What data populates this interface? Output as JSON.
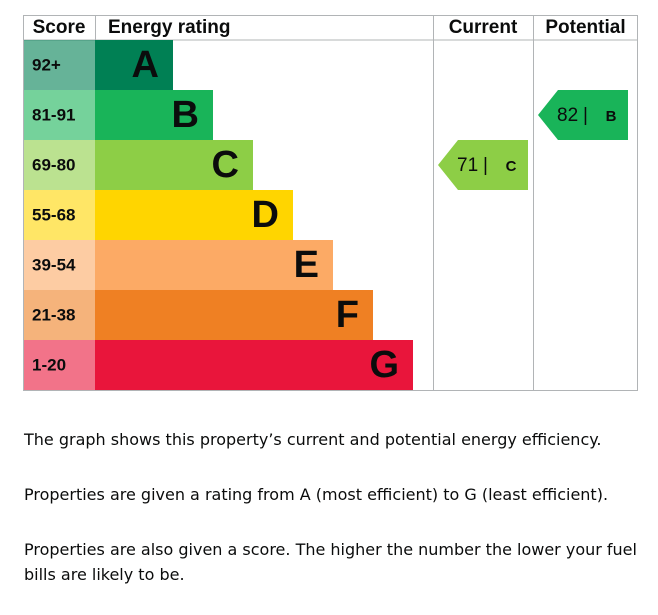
{
  "chart_data": {
    "type": "epc",
    "headers": {
      "score": "Score",
      "rating": "Energy rating",
      "current": "Current",
      "potential": "Potential"
    },
    "bands": [
      {
        "score": "92+",
        "letter": "A",
        "color": "#008054"
      },
      {
        "score": "81-91",
        "letter": "B",
        "color": "#19b459"
      },
      {
        "score": "69-80",
        "letter": "C",
        "color": "#8dce46"
      },
      {
        "score": "55-68",
        "letter": "D",
        "color": "#ffd500"
      },
      {
        "score": "39-54",
        "letter": "E",
        "color": "#fcaa65"
      },
      {
        "score": "21-38",
        "letter": "F",
        "color": "#ef8023"
      },
      {
        "score": "1-20",
        "letter": "G",
        "color": "#e9153b"
      }
    ],
    "separator": "|",
    "current": {
      "value": 71,
      "letter": "C"
    },
    "potential": {
      "value": 82,
      "letter": "B"
    }
  },
  "paragraphs": [
    "The graph shows this property’s current and potential energy efficiency.",
    "Properties are given a rating from A (most efficient) to G (least efficient).",
    "Properties are also given a score. The higher the number the lower your fuel bills are likely to be."
  ]
}
